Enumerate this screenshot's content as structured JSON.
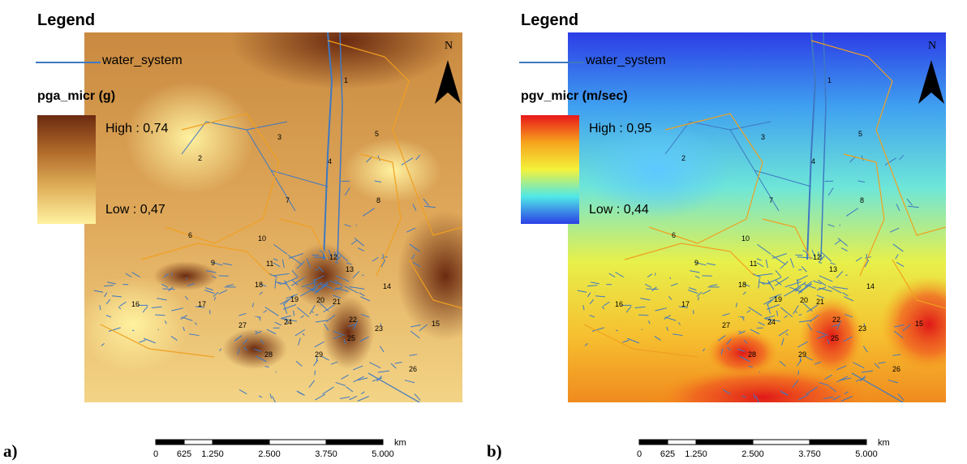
{
  "panels": [
    {
      "id": "a",
      "sublabel": "a)",
      "legend_title": "Legend",
      "layer_label": "water_system",
      "variable": "pga_micr (g)",
      "high_label": "High : 0,74",
      "low_label": "Low : 0,47",
      "ramp_colors": [
        "#6b2a10",
        "#b06a2a",
        "#e1b05a",
        "#fff2a0"
      ],
      "north_letter": "N"
    },
    {
      "id": "b",
      "sublabel": "b)",
      "legend_title": "Legend",
      "layer_label": "water_system",
      "variable": "pgv_micr (m/sec)",
      "high_label": "High : 0,95",
      "low_label": "Low : 0,44",
      "ramp_colors": [
        "#e8171a",
        "#f6a31c",
        "#f4f23a",
        "#4fe8e8",
        "#2b3fe6"
      ],
      "north_letter": "N"
    }
  ],
  "scalebar": {
    "ticks": [
      "0",
      "625",
      "1.250",
      "2.500",
      "3.750",
      "5.000"
    ],
    "unit": "km"
  },
  "districts": [
    "1",
    "2",
    "3",
    "4",
    "5",
    "6",
    "7",
    "8",
    "9",
    "10",
    "11",
    "12",
    "13",
    "14",
    "15",
    "16",
    "17",
    "18",
    "19",
    "20",
    "21",
    "22",
    "23",
    "24",
    "25",
    "26",
    "27",
    "28",
    "29"
  ],
  "colors": {
    "network": "#3e78c2",
    "boundary": "#f0a020"
  }
}
